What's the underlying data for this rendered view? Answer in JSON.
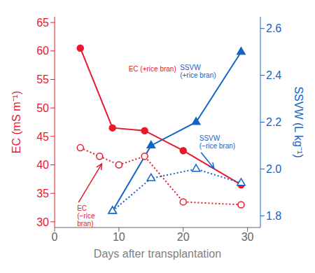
{
  "chart_data": {
    "type": "line",
    "xlabel": "Days after transplantation",
    "ylabel": "EC (mS m⁻¹)",
    "y2label": "SSVW (L kg⁻¹)",
    "xlim": [
      0,
      32
    ],
    "xticks": [
      0,
      10,
      20,
      30
    ],
    "ylim": [
      29,
      66
    ],
    "yticks": [
      30,
      35,
      40,
      45,
      50,
      55,
      60,
      65
    ],
    "y2lim": [
      1.75,
      2.65
    ],
    "y2ticks": [
      1.8,
      {
        "value": 2.0,
        "label": "2.0"
      },
      2.2,
      2.4,
      2.6
    ],
    "series": [
      {
        "x": [
          4,
          9,
          14,
          20,
          29
        ],
        "values": [
          60.5,
          46.5,
          46.0,
          42.5,
          36.5
        ],
        "color": "#e8192c",
        "marker": "filled_circle",
        "line_style": "solid",
        "axis": "y"
      },
      {
        "x": [
          4,
          7,
          10,
          14,
          20,
          29
        ],
        "values": [
          43.0,
          41.5,
          40.0,
          41.5,
          33.5,
          33.0
        ],
        "color": "#e8192c",
        "marker": "open_circle",
        "line_style": "dotted",
        "axis": "y"
      },
      {
        "x": [
          9,
          15,
          22,
          29
        ],
        "values": [
          1.82,
          2.1,
          2.2,
          2.5
        ],
        "color": "#1464c8",
        "marker": "filled_triangle",
        "line_style": "solid",
        "axis": "y2"
      },
      {
        "x": [
          9,
          15,
          22,
          29
        ],
        "values": [
          1.82,
          1.96,
          2.0,
          1.94
        ],
        "color": "#1464c8",
        "marker": "open_triangle",
        "line_style": "dotted",
        "axis": "y2"
      }
    ],
    "annotations": [
      {
        "text": "EC (+rice bran)",
        "x": 11.5,
        "y": 56,
        "axis": "y"
      },
      {
        "text": "EC\n(−rice\nbran)",
        "x": 3.5,
        "y": 33.0,
        "axis": "y",
        "arrow_x": 7.5,
        "arrow_y": 40.5
      },
      {
        "text": "SSVW\n(+rice bran)",
        "x": 19.5,
        "y": 2.38,
        "axis": "y2"
      },
      {
        "text": "SSVW\n(−rice bran)",
        "x": 22.5,
        "y": 2.08,
        "axis": "y2",
        "arrow_x": 25,
        "arrow_y": 1.995
      }
    ]
  }
}
